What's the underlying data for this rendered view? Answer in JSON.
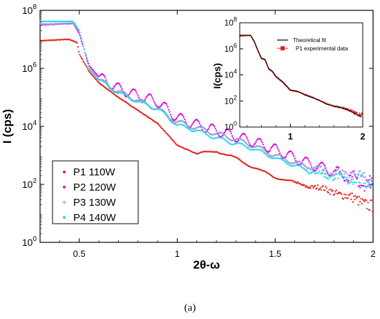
{
  "caption": "(a)",
  "chart_data": [
    {
      "type": "scatter",
      "xlabel": "2θ-ω",
      "ylabel": "I (cps)",
      "xlim": [
        0.3,
        2.0
      ],
      "ylim_log10": [
        0,
        8
      ],
      "yscale": "log",
      "x_ticks": [
        "0.5",
        "1",
        "1.5",
        "2"
      ],
      "x_tick_values": [
        0.5,
        1,
        1.5,
        2
      ],
      "y_ticks": [
        {
          "base": "10",
          "exp": "0",
          "value": 0
        },
        {
          "base": "10",
          "exp": "2",
          "value": 2
        },
        {
          "base": "10",
          "exp": "4",
          "value": 4
        },
        {
          "base": "10",
          "exp": "6",
          "value": 6
        },
        {
          "base": "10",
          "exp": "8",
          "value": 8
        }
      ],
      "legend_position": "bottom-left",
      "series": [
        {
          "name": "P1 110W",
          "color": "#e8201c",
          "marker": "dot",
          "anchors": [
            [
              0.3,
              6.95
            ],
            [
              0.45,
              7.0
            ],
            [
              0.49,
              6.88
            ],
            [
              0.5,
              6.5
            ],
            [
              0.55,
              5.9
            ],
            [
              0.6,
              5.5
            ],
            [
              0.7,
              5.0
            ],
            [
              0.8,
              4.55
            ],
            [
              0.9,
              4.1
            ],
            [
              1.0,
              3.35
            ],
            [
              1.1,
              3.05
            ],
            [
              1.2,
              3.15
            ],
            [
              1.3,
              2.9
            ],
            [
              1.4,
              2.55
            ],
            [
              1.5,
              2.25
            ],
            [
              1.6,
              2.05
            ],
            [
              1.7,
              1.9
            ],
            [
              1.8,
              1.75
            ],
            [
              1.9,
              1.5
            ],
            [
              2.0,
              1.25
            ]
          ],
          "fringe_amp": 0.04,
          "fringe_start": 1.1,
          "fringe_period": 0.15,
          "noise_start": 1.55
        },
        {
          "name": "P2 120W",
          "color": "#e000e0",
          "marker": "dot",
          "anchors": [
            [
              0.3,
              7.5
            ],
            [
              0.47,
              7.55
            ],
            [
              0.5,
              7.2
            ],
            [
              0.55,
              6.1
            ],
            [
              0.6,
              5.7
            ],
            [
              0.7,
              5.3
            ],
            [
              0.8,
              5.05
            ],
            [
              0.9,
              4.85
            ],
            [
              1.0,
              4.3
            ],
            [
              1.1,
              4.05
            ],
            [
              1.2,
              3.85
            ],
            [
              1.3,
              3.65
            ],
            [
              1.4,
              3.45
            ],
            [
              1.5,
              3.2
            ],
            [
              1.6,
              2.9
            ],
            [
              1.7,
              2.65
            ],
            [
              1.8,
              2.45
            ],
            [
              1.9,
              2.15
            ],
            [
              2.0,
              1.9
            ]
          ],
          "fringe_amp": 0.18,
          "fringe_start": 0.6,
          "fringe_period": 0.08,
          "noise_start": 1.75
        },
        {
          "name": "P3 130W",
          "color": "#9a9adc",
          "marker": "plus",
          "anchors": [
            [
              0.3,
              7.52
            ],
            [
              0.47,
              7.55
            ],
            [
              0.5,
              7.3
            ],
            [
              0.55,
              6.0
            ],
            [
              0.6,
              5.6
            ],
            [
              0.7,
              5.2
            ],
            [
              0.8,
              4.9
            ],
            [
              0.9,
              4.6
            ],
            [
              1.0,
              4.15
            ],
            [
              1.1,
              3.95
            ],
            [
              1.2,
              3.75
            ],
            [
              1.3,
              3.55
            ],
            [
              1.4,
              3.3
            ],
            [
              1.5,
              3.0
            ],
            [
              1.6,
              2.75
            ],
            [
              1.7,
              2.55
            ],
            [
              1.8,
              2.4
            ],
            [
              1.9,
              2.3
            ],
            [
              2.0,
              2.2
            ]
          ],
          "fringe_amp": 0.08,
          "fringe_start": 0.6,
          "fringe_period": 0.1,
          "noise_start": 1.6
        },
        {
          "name": "P4 140W",
          "color": "#2ad8e8",
          "marker": "dot",
          "anchors": [
            [
              0.3,
              7.62
            ],
            [
              0.47,
              7.62
            ],
            [
              0.5,
              7.3
            ],
            [
              0.55,
              6.0
            ],
            [
              0.6,
              5.6
            ],
            [
              0.7,
              5.15
            ],
            [
              0.8,
              4.85
            ],
            [
              0.9,
              4.6
            ],
            [
              1.0,
              4.05
            ],
            [
              1.1,
              3.85
            ],
            [
              1.2,
              3.6
            ],
            [
              1.3,
              3.4
            ],
            [
              1.4,
              3.2
            ],
            [
              1.5,
              2.9
            ],
            [
              1.6,
              2.65
            ],
            [
              1.7,
              2.4
            ],
            [
              1.8,
              2.25
            ],
            [
              1.9,
              2.15
            ],
            [
              2.0,
              2.05
            ]
          ],
          "fringe_amp": 0.06,
          "fringe_start": 0.6,
          "fringe_period": 0.1,
          "noise_start": 1.6
        }
      ]
    },
    {
      "type": "line",
      "xlabel": "",
      "ylabel": "I(cps)",
      "xlim": [
        0.3,
        2.0
      ],
      "ylim_log10": [
        0,
        8
      ],
      "yscale": "log",
      "x_ticks": [
        "1",
        "2"
      ],
      "x_tick_values": [
        1,
        2
      ],
      "y_ticks": [
        {
          "base": "10",
          "exp": "0",
          "value": 0
        },
        {
          "base": "10",
          "exp": "2",
          "value": 2
        },
        {
          "base": "10",
          "exp": "4",
          "value": 4
        },
        {
          "base": "10",
          "exp": "6",
          "value": 6
        },
        {
          "base": "10",
          "exp": "8",
          "value": 8
        }
      ],
      "legend_position": "top-right",
      "series": [
        {
          "name": "Theoretical fit",
          "color": "#000000",
          "style": "line",
          "anchors": [
            [
              0.3,
              7.05
            ],
            [
              0.45,
              7.05
            ],
            [
              0.5,
              6.6
            ],
            [
              0.55,
              5.9
            ],
            [
              0.6,
              5.3
            ],
            [
              0.65,
              5.2
            ],
            [
              0.7,
              4.5
            ],
            [
              0.75,
              4.3
            ],
            [
              0.8,
              3.9
            ],
            [
              0.9,
              3.45
            ],
            [
              1.0,
              2.85
            ],
            [
              1.1,
              2.75
            ],
            [
              1.2,
              2.45
            ],
            [
              1.3,
              2.25
            ],
            [
              1.4,
              2.05
            ],
            [
              1.5,
              1.75
            ],
            [
              1.6,
              1.6
            ],
            [
              1.7,
              1.5
            ],
            [
              1.8,
              1.3
            ],
            [
              1.9,
              1.0
            ],
            [
              2.0,
              0.8
            ]
          ]
        },
        {
          "name": "P1 experimental data",
          "color": "#e8201c",
          "style": "line-marker",
          "anchors": [
            [
              0.3,
              7.0
            ],
            [
              0.45,
              7.02
            ],
            [
              0.5,
              6.55
            ],
            [
              0.55,
              5.85
            ],
            [
              0.6,
              5.25
            ],
            [
              0.65,
              5.15
            ],
            [
              0.7,
              4.45
            ],
            [
              0.75,
              4.25
            ],
            [
              0.8,
              3.85
            ],
            [
              0.9,
              3.4
            ],
            [
              1.0,
              2.8
            ],
            [
              1.1,
              2.72
            ],
            [
              1.2,
              2.5
            ],
            [
              1.3,
              2.3
            ],
            [
              1.4,
              2.05
            ],
            [
              1.5,
              1.8
            ],
            [
              1.6,
              1.6
            ],
            [
              1.7,
              1.5
            ],
            [
              1.8,
              1.35
            ],
            [
              1.9,
              1.05
            ],
            [
              2.0,
              0.9
            ]
          ]
        }
      ]
    }
  ]
}
